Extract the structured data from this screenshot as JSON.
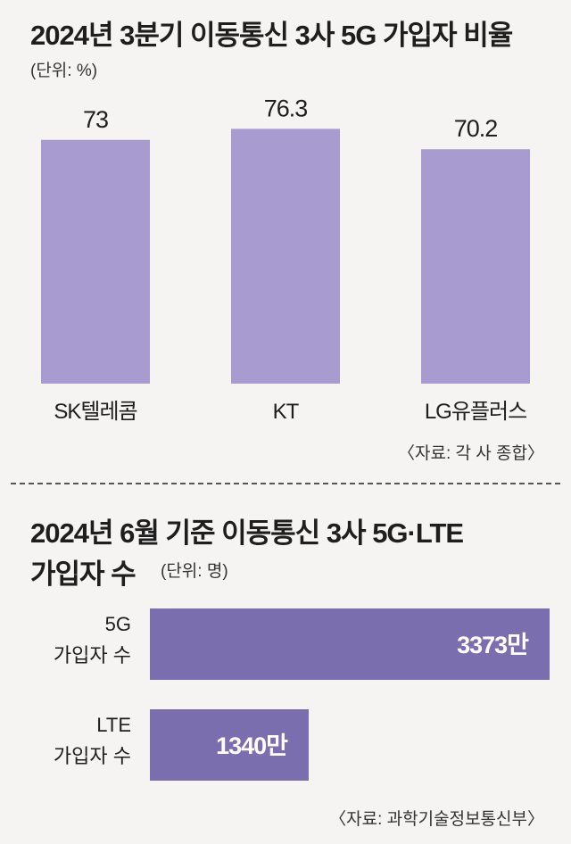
{
  "chart_data": [
    {
      "type": "bar",
      "title": "2024년 3분기 이동통신 3사 5G 가입자 비율",
      "unit": "(단위: %)",
      "categories": [
        "SK텔레콤",
        "KT",
        "LG유플러스"
      ],
      "values": [
        73,
        76.3,
        70.2
      ],
      "value_labels": [
        "73",
        "76.3",
        "70.2"
      ],
      "source": "〈자료: 각 사 종합〉",
      "color": "#a79bd0"
    },
    {
      "type": "bar",
      "orientation": "horizontal",
      "title_line1": "2024년 6월 기준 이동통신 3사 5G·LTE",
      "title_line2": "가입자 수",
      "unit": "(단위: 명)",
      "categories": [
        [
          "5G",
          "가입자 수"
        ],
        [
          "LTE",
          "가입자 수"
        ]
      ],
      "values": [
        33730000,
        13400000
      ],
      "value_labels": [
        "3373만",
        "1340만"
      ],
      "source": "〈자료: 과학기술정보통신부〉",
      "color": "#7a6eae"
    }
  ]
}
